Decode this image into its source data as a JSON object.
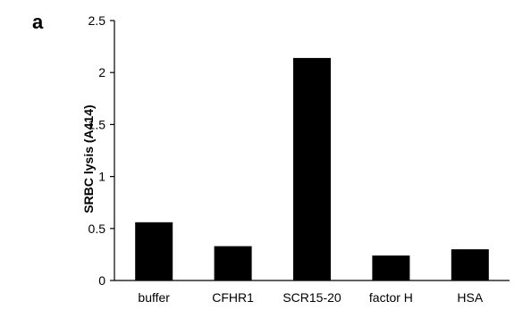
{
  "panel_label": "a",
  "chart_data": {
    "type": "bar",
    "categories": [
      "buffer",
      "CFHR1",
      "SCR15-20",
      "factor H",
      "HSA"
    ],
    "values": [
      0.56,
      0.33,
      2.14,
      0.24,
      0.3
    ],
    "xlabel": "",
    "ylabel": "SRBC lysis (A414)",
    "ylim": [
      0,
      2.5
    ],
    "yticks": [
      0,
      0.5,
      1,
      1.5,
      2,
      2.5
    ],
    "ytick_labels": [
      "0",
      "0.5",
      "1",
      "1.5",
      "2",
      "2.5"
    ],
    "grid": false,
    "legend": "none",
    "bar_color": "#000000"
  }
}
